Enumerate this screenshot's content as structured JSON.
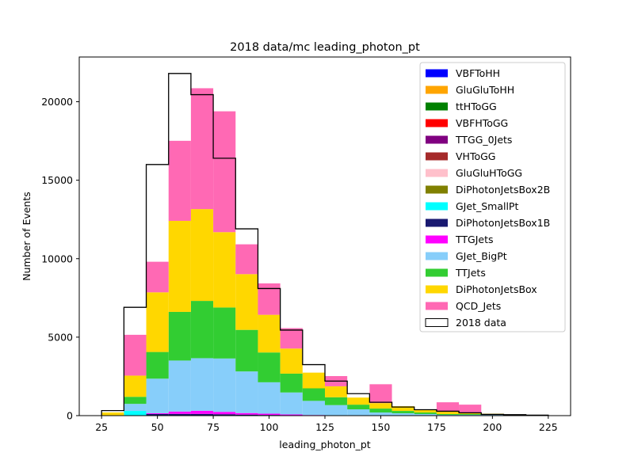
{
  "chart_data": {
    "type": "bar",
    "title": "2018 data/mc leading_photon_pt",
    "xlabel": "leading_photon_pt",
    "ylabel": "Number of Events",
    "xlim": [
      15,
      235
    ],
    "ylim": [
      0,
      22850
    ],
    "xticks": [
      25,
      50,
      75,
      100,
      125,
      150,
      175,
      200,
      225
    ],
    "yticks": [
      0,
      5000,
      10000,
      15000,
      20000
    ],
    "bin_edges": [
      25,
      35,
      45,
      55,
      65,
      75,
      85,
      95,
      105,
      115,
      125,
      135,
      145,
      155,
      165,
      175,
      185,
      195,
      205,
      215,
      225
    ],
    "legend_position": "upper right",
    "series": [
      {
        "name": "VBFToHH",
        "color": "#0000ff",
        "values": [
          0,
          0,
          0,
          0,
          0,
          0,
          0,
          0,
          0,
          0,
          0,
          0,
          0,
          0,
          0,
          0,
          0,
          0,
          0,
          0
        ]
      },
      {
        "name": "GluGluToHH",
        "color": "#ffa500",
        "values": [
          0,
          0,
          0,
          0,
          0,
          0,
          0,
          0,
          0,
          0,
          0,
          0,
          0,
          0,
          0,
          0,
          0,
          0,
          0,
          0
        ]
      },
      {
        "name": "ttHToGG",
        "color": "#008000",
        "values": [
          0,
          0,
          0,
          0,
          0,
          0,
          0,
          0,
          0,
          0,
          0,
          0,
          0,
          0,
          0,
          0,
          0,
          0,
          0,
          0
        ]
      },
      {
        "name": "VBFHToGG",
        "color": "#ff0000",
        "values": [
          0,
          0,
          0,
          0,
          0,
          0,
          0,
          0,
          0,
          0,
          0,
          0,
          0,
          0,
          0,
          0,
          0,
          0,
          0,
          0
        ]
      },
      {
        "name": "TTGG_0Jets",
        "color": "#800080",
        "values": [
          0,
          0,
          5,
          10,
          10,
          10,
          5,
          5,
          5,
          0,
          0,
          0,
          0,
          0,
          0,
          0,
          0,
          0,
          0,
          0
        ]
      },
      {
        "name": "VHToGG",
        "color": "#a52a2a",
        "values": [
          0,
          0,
          0,
          0,
          0,
          0,
          0,
          0,
          0,
          0,
          0,
          0,
          0,
          0,
          0,
          0,
          0,
          0,
          0,
          0
        ]
      },
      {
        "name": "GluGluHToGG",
        "color": "#ffc0cb",
        "values": [
          0,
          0,
          0,
          0,
          0,
          0,
          0,
          0,
          0,
          0,
          0,
          0,
          0,
          0,
          0,
          0,
          0,
          0,
          0,
          0
        ]
      },
      {
        "name": "DiPhotonJetsBox2B",
        "color": "#808000",
        "values": [
          0,
          0,
          0,
          0,
          0,
          0,
          0,
          0,
          0,
          0,
          0,
          0,
          0,
          0,
          0,
          0,
          0,
          0,
          0,
          0
        ]
      },
      {
        "name": "GJet_SmallPt",
        "color": "#00ffff",
        "values": [
          0,
          300,
          0,
          0,
          0,
          0,
          0,
          0,
          0,
          0,
          0,
          0,
          0,
          0,
          0,
          0,
          0,
          0,
          0,
          0
        ]
      },
      {
        "name": "DiPhotonJetsBox1B",
        "color": "#191970",
        "values": [
          0,
          0,
          100,
          100,
          100,
          80,
          60,
          40,
          20,
          10,
          0,
          0,
          0,
          0,
          0,
          0,
          0,
          0,
          0,
          0
        ]
      },
      {
        "name": "TTGJets",
        "color": "#ff00ff",
        "values": [
          0,
          0,
          50,
          150,
          200,
          150,
          100,
          80,
          50,
          30,
          20,
          0,
          0,
          0,
          0,
          0,
          0,
          0,
          0,
          0
        ]
      },
      {
        "name": "GJet_BigPt",
        "color": "#87cefa",
        "values": [
          0,
          450,
          2200,
          3250,
          3350,
          3400,
          2650,
          2000,
          1400,
          900,
          650,
          400,
          200,
          150,
          100,
          50,
          50,
          50,
          20,
          0
        ]
      },
      {
        "name": "TTJets",
        "color": "#32cd32",
        "values": [
          0,
          450,
          1700,
          3100,
          3650,
          3250,
          2650,
          1900,
          1200,
          800,
          500,
          300,
          250,
          150,
          100,
          50,
          50,
          20,
          10,
          0
        ]
      },
      {
        "name": "DiPhotonJetsBox",
        "color": "#ffd700",
        "values": [
          200,
          1350,
          3800,
          5800,
          5850,
          4800,
          3550,
          2400,
          1600,
          1000,
          700,
          450,
          350,
          300,
          200,
          150,
          100,
          50,
          30,
          20
        ]
      },
      {
        "name": "QCD_Jets",
        "color": "#ff69b4",
        "values": [
          0,
          2600,
          1950,
          5100,
          7700,
          7700,
          1900,
          2000,
          1300,
          0,
          650,
          0,
          1200,
          0,
          0,
          600,
          500,
          0,
          0,
          0
        ]
      }
    ],
    "data": {
      "name": "2018 data",
      "values": [
        320,
        6900,
        16000,
        21800,
        20450,
        16400,
        11900,
        8100,
        5450,
        3250,
        2200,
        1400,
        850,
        550,
        380,
        280,
        180,
        80,
        60,
        30
      ]
    }
  }
}
